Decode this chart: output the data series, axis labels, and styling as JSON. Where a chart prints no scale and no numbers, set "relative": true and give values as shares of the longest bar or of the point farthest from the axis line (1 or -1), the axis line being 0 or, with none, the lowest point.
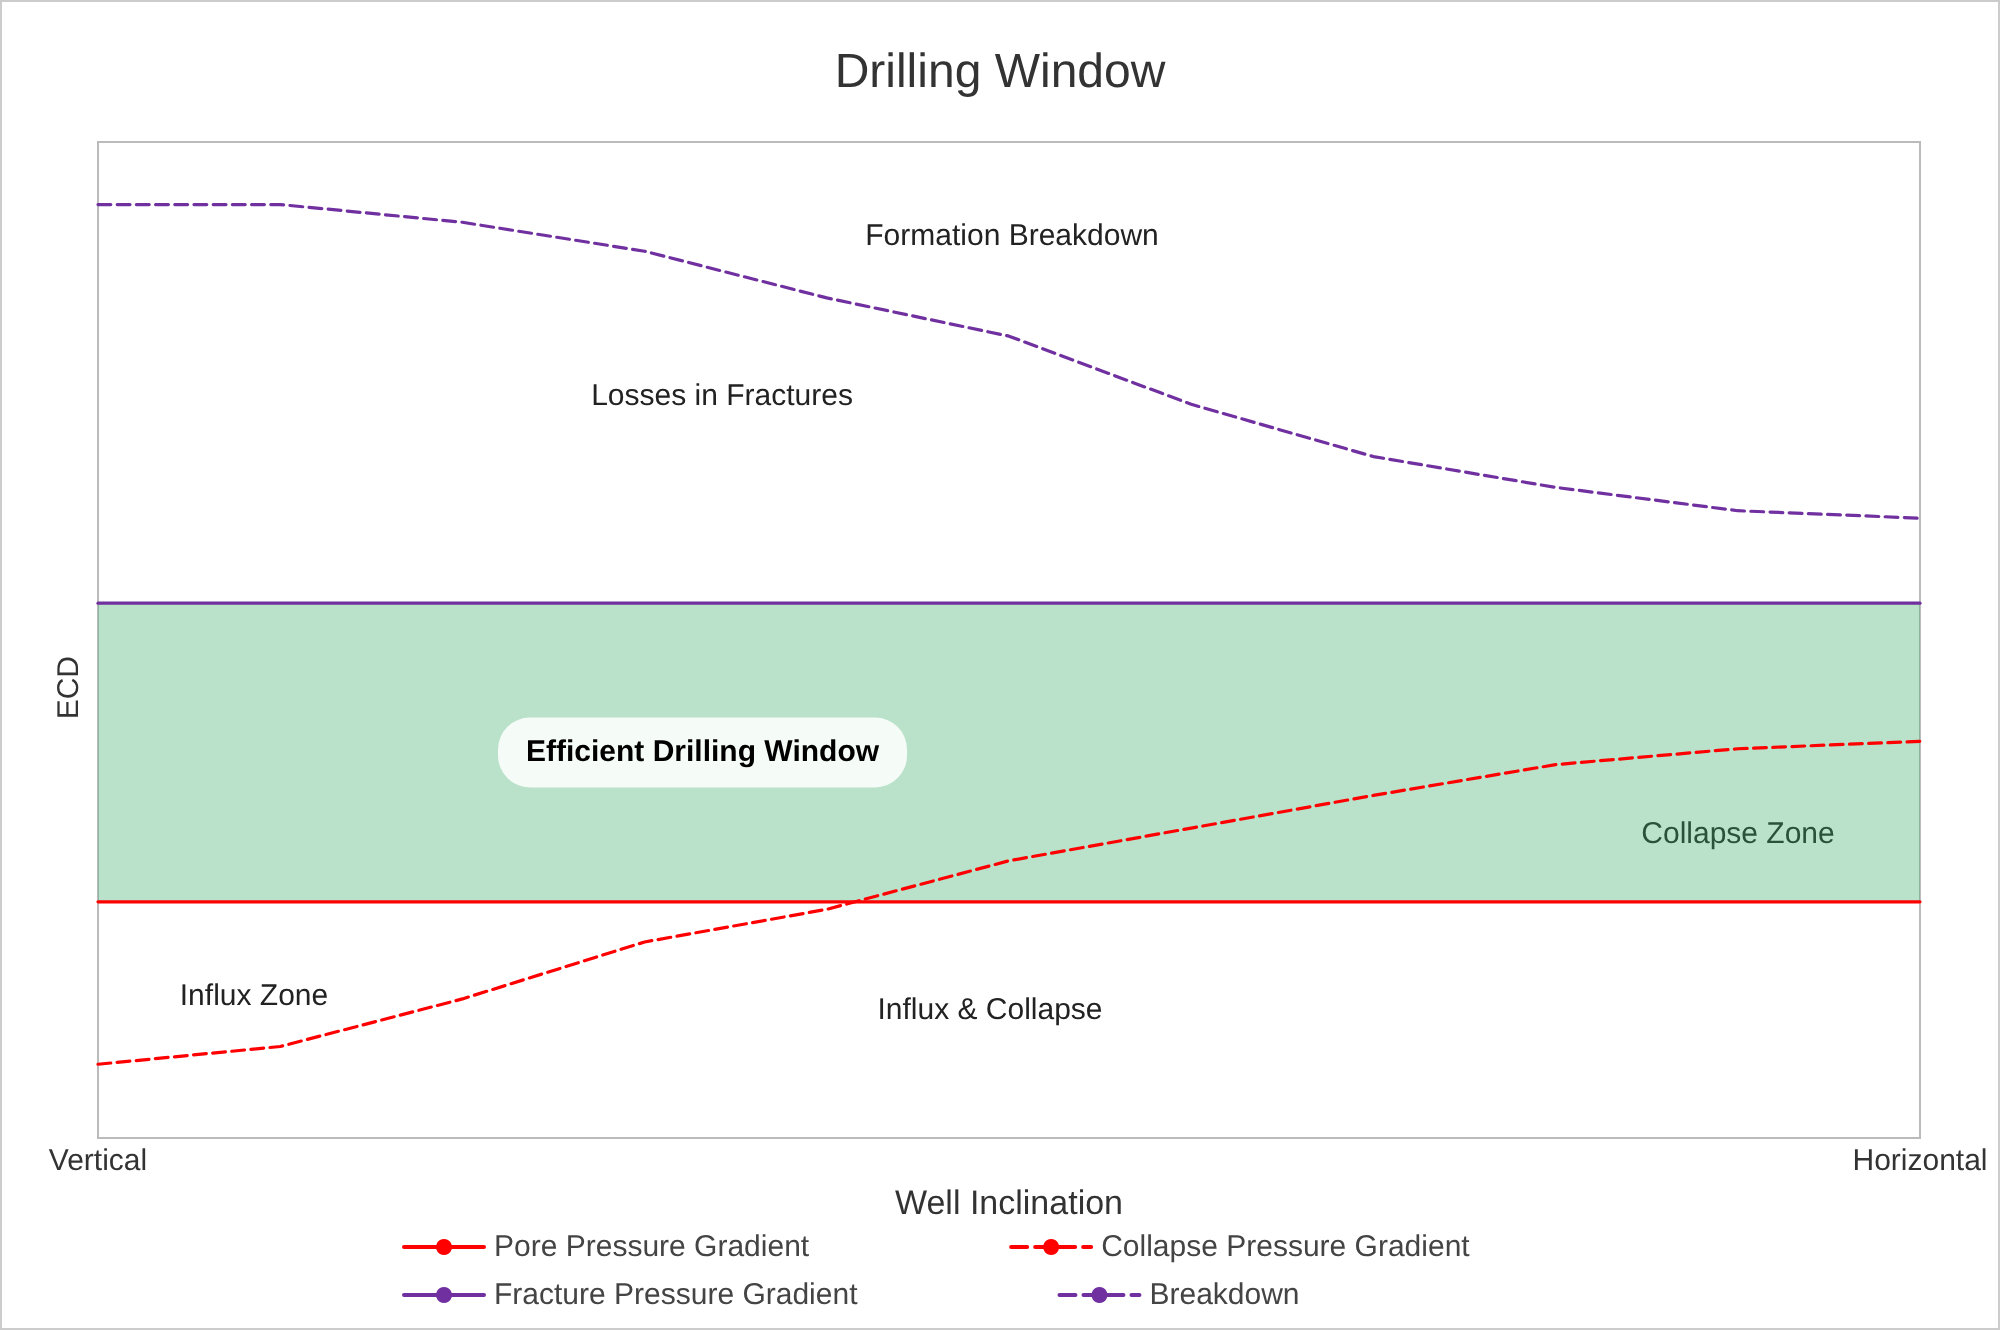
{
  "chart_data": {
    "type": "line",
    "title": "Drilling Window",
    "xlabel": "Well Inclination",
    "ylabel": "ECD",
    "relative": true,
    "grid": false,
    "legend": "bottom",
    "marker": "none",
    "categories": [
      "Vertical",
      null,
      null,
      null,
      null,
      null,
      null,
      null,
      null,
      null,
      "Horizontal"
    ],
    "series": [
      {
        "name": "Pore Pressure Gradient",
        "color": "#ff0000",
        "line_style": "solid",
        "values": [
          0.253,
          0.253,
          0.253,
          0.253,
          0.253,
          0.253,
          0.253,
          0.253,
          0.253,
          0.253,
          0.253
        ]
      },
      {
        "name": "Collapse Pressure Gradient",
        "color": "#ff0000",
        "line_style": "dashed",
        "values": [
          0.079,
          0.098,
          0.149,
          0.21,
          0.245,
          0.297,
          0.332,
          0.367,
          0.4,
          0.417,
          0.425
        ]
      },
      {
        "name": "Fracture Pressure Gradient",
        "color": "#7030a0",
        "line_style": "solid",
        "values": [
          0.573,
          0.573,
          0.573,
          0.573,
          0.573,
          0.573,
          0.573,
          0.573,
          0.573,
          0.573,
          0.573
        ]
      },
      {
        "name": "Breakdown",
        "color": "#7030a0",
        "line_style": "dashed",
        "values": [
          1.0,
          1.0,
          0.981,
          0.95,
          0.9,
          0.859,
          0.786,
          0.73,
          0.697,
          0.672,
          0.664
        ]
      }
    ],
    "bands": [
      {
        "axis": "y",
        "from": 0.253,
        "to": 0.573,
        "label": "Efficient Drilling Window",
        "color": "#3aa864"
      }
    ],
    "annotations": [
      "Formation Breakdown",
      "Losses in Fractures",
      "Influx Zone",
      "Influx & Collapse",
      "Collapse Zone"
    ]
  }
}
